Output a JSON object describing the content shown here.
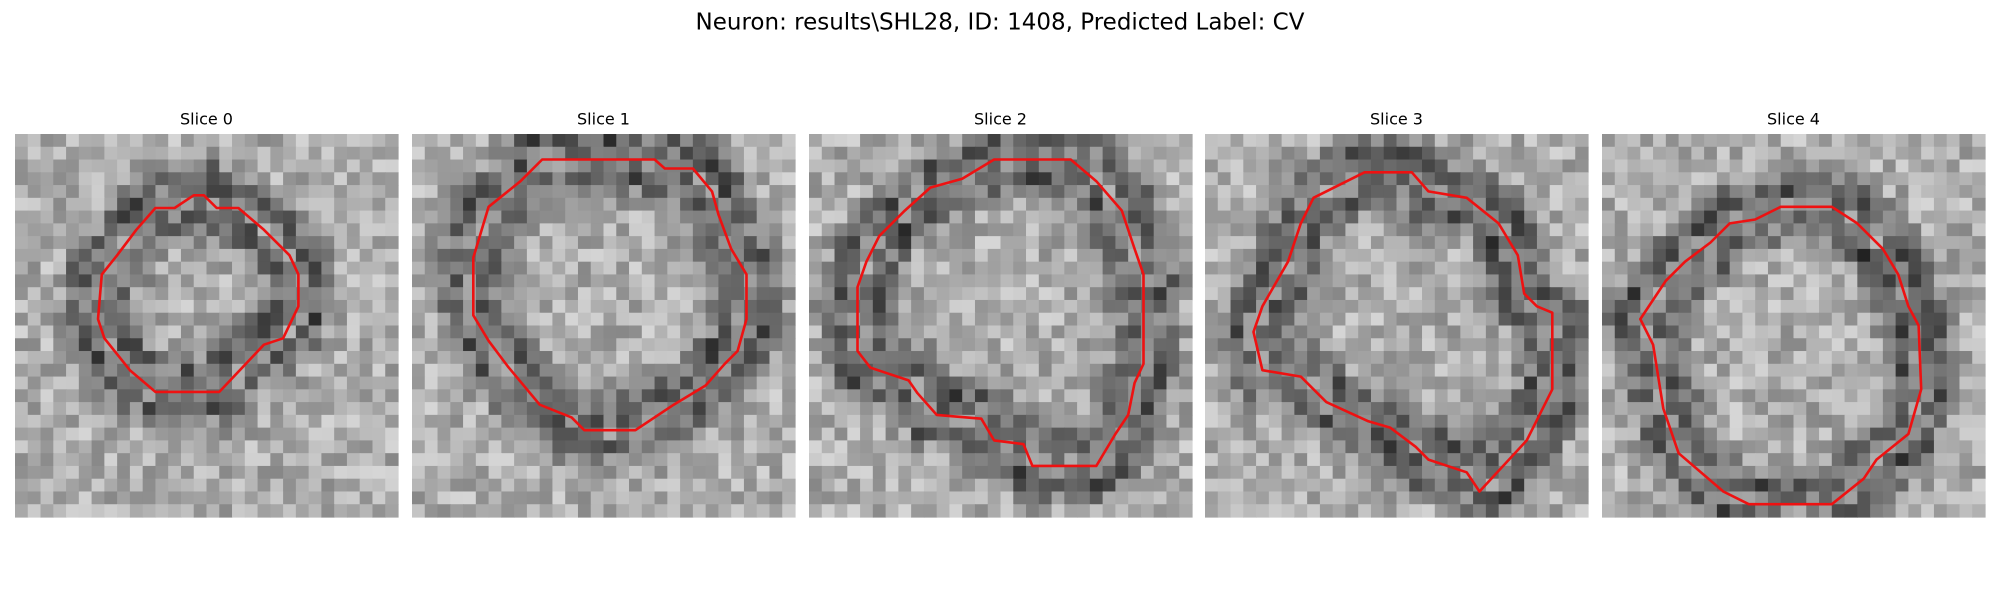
{
  "figure": {
    "title": "Neuron: results\\SHL28, ID: 1408, Predicted Label: CV",
    "panels": [
      {
        "title": "Slice 0"
      },
      {
        "title": "Slice 1"
      },
      {
        "title": "Slice 2"
      },
      {
        "title": "Slice 3"
      },
      {
        "title": "Slice 4"
      }
    ]
  }
}
